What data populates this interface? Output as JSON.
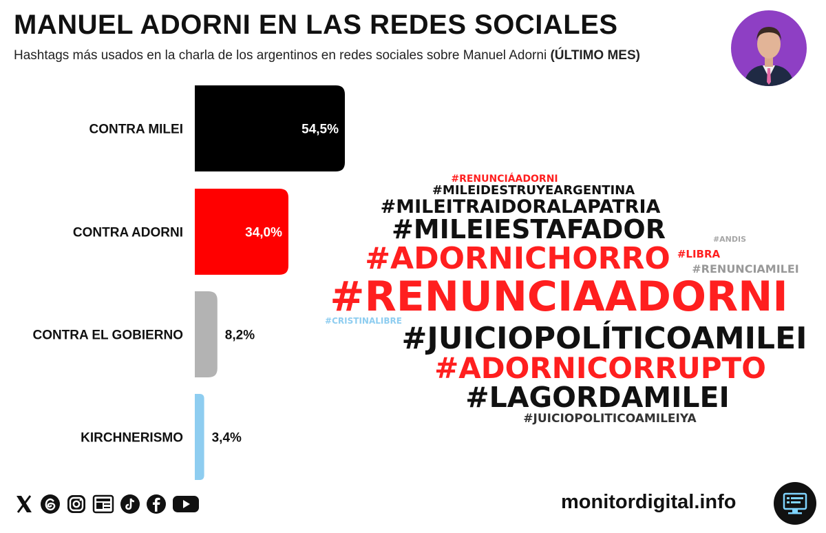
{
  "header": {
    "title": "MANUEL ADORNI EN LAS REDES SOCIALES",
    "subtitle": "Hashtags más usados en la charla de los argentinos en redes sociales sobre Manuel Adorni",
    "subtitle_emphasis": "(ÚLTIMO MES)"
  },
  "chart_data": {
    "type": "bar",
    "orientation": "horizontal",
    "categories": [
      "CONTRA MILEI",
      "CONTRA ADORNI",
      "CONTRA EL GOBIERNO",
      "KIRCHNERISMO"
    ],
    "values": [
      54.5,
      34.0,
      8.2,
      3.4
    ],
    "value_labels": [
      "54,5%",
      "34,0%",
      "8,2%",
      "3,4%"
    ],
    "colors": [
      "#000000",
      "#ff0000",
      "#b3b3b3",
      "#8ecdf0"
    ],
    "xlim": [
      0,
      54.5
    ],
    "unit": "%",
    "grid": false,
    "legend": "none"
  },
  "word_cloud": [
    {
      "text": "#RENUNCIÁADORNI",
      "color": "#ff1f1f"
    },
    {
      "text": "#MILEIDESTRUYEARGENTINA",
      "color": "#111111"
    },
    {
      "text": "#MILEITRAIDORALAPATRIA",
      "color": "#111111"
    },
    {
      "text": "#MILEIESTAFADOR",
      "color": "#111111"
    },
    {
      "text": "#ANDIS",
      "color": "#a6a6a6"
    },
    {
      "text": "#LIBRA",
      "color": "#ff1f1f"
    },
    {
      "text": "#ADORNICHORRO",
      "color": "#ff1f1f"
    },
    {
      "text": "#RENUNCIAMILEI",
      "color": "#999999"
    },
    {
      "text": "#RENUNCIAADORNI",
      "color": "#ff1f1f"
    },
    {
      "text": "#CRISTINALIBRE",
      "color": "#8ecdf0"
    },
    {
      "text": "#JUICIOPOLÍTICOAMILEI",
      "color": "#111111"
    },
    {
      "text": "#ADORNICORRUPTO",
      "color": "#ff1f1f"
    },
    {
      "text": "#LAGORDAMILEI",
      "color": "#111111"
    },
    {
      "text": "#JUICIOPOLITICOAMILEIYA",
      "color": "#333333"
    }
  ],
  "footer": {
    "website": "monitordigital.info",
    "social_icons": [
      "x-icon",
      "threads-icon",
      "instagram-icon",
      "news-icon",
      "tiktok-icon",
      "facebook-icon",
      "youtube-icon"
    ]
  },
  "avatar": {
    "background": "#8e3fc4"
  }
}
